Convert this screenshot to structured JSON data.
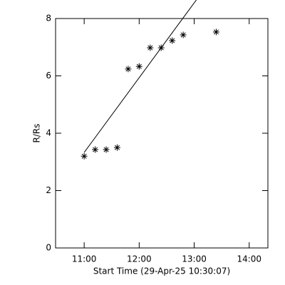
{
  "chart_data": {
    "type": "scatter",
    "xlabel": "Start Time (29-Apr-25 10:30:07)",
    "ylabel": "R/Rs",
    "x": [
      11.0,
      11.2,
      11.4,
      11.6,
      11.8,
      12.0,
      12.2,
      12.4,
      12.6,
      12.8,
      13.4
    ],
    "values": [
      3.2,
      3.43,
      3.43,
      3.5,
      6.24,
      6.33,
      6.98,
      6.98,
      7.23,
      7.43,
      7.53
    ],
    "color": "#000000",
    "fit": {
      "x": [
        11.0,
        13.04
      ],
      "values": [
        3.33,
        8.65
      ]
    },
    "xlim": [
      10.48,
      14.34
    ],
    "ylim": [
      0,
      8
    ],
    "xticks": [
      {
        "value": 11,
        "label": "11:00"
      },
      {
        "value": 12,
        "label": "12:00"
      },
      {
        "value": 13,
        "label": "13:00"
      },
      {
        "value": 14,
        "label": "14:00"
      }
    ],
    "yticks": [
      0,
      2,
      4,
      6,
      8
    ]
  }
}
